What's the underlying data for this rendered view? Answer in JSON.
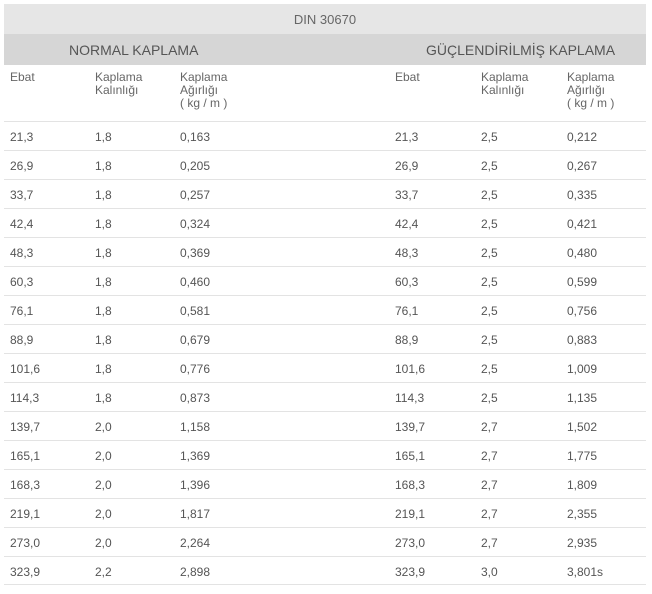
{
  "table": {
    "title": "DIN 30670",
    "sections": {
      "left": "NORMAL KAPLAMA",
      "right": "GÜÇLENDİRİLMİŞ KAPLAMA"
    },
    "headers": [
      "Ebat",
      "Kaplama\nKalınlığı",
      "Kaplama\nAğırlığı\n( kg / m )",
      "Ebat",
      "Kaplama\nKalınlığı",
      "Kaplama\nAğırlığı\n( kg / m )"
    ],
    "rows": [
      [
        "21,3",
        "1,8",
        "0,163",
        "21,3",
        "2,5",
        "0,212"
      ],
      [
        "26,9",
        "1,8",
        "0,205",
        "26,9",
        "2,5",
        "0,267"
      ],
      [
        "33,7",
        "1,8",
        "0,257",
        "33,7",
        "2,5",
        "0,335"
      ],
      [
        "42,4",
        "1,8",
        "0,324",
        "42,4",
        "2,5",
        "0,421"
      ],
      [
        "48,3",
        "1,8",
        "0,369",
        "48,3",
        "2,5",
        "0,480"
      ],
      [
        "60,3",
        "1,8",
        "0,460",
        "60,3",
        "2,5",
        "0,599"
      ],
      [
        "76,1",
        "1,8",
        "0,581",
        "76,1",
        "2,5",
        "0,756"
      ],
      [
        "88,9",
        "1,8",
        "0,679",
        "88,9",
        "2,5",
        "0,883"
      ],
      [
        "101,6",
        "1,8",
        "0,776",
        "101,6",
        "2,5",
        "1,009"
      ],
      [
        "114,3",
        "1,8",
        "0,873",
        "114,3",
        "2,5",
        "1,135"
      ],
      [
        "139,7",
        "2,0",
        "1,158",
        "139,7",
        "2,7",
        "1,502"
      ],
      [
        "165,1",
        "2,0",
        "1,369",
        "165,1",
        "2,7",
        "1,775"
      ],
      [
        "168,3",
        "2,0",
        "1,396",
        "168,3",
        "2,7",
        "1,809"
      ],
      [
        "219,1",
        "2,0",
        "1,817",
        "219,1",
        "2,7",
        "2,355"
      ],
      [
        "273,0",
        "2,0",
        "2,264",
        "273,0",
        "2,7",
        "2,935"
      ],
      [
        "323,9",
        "2,2",
        "2,898",
        "323,9",
        "3,0",
        "3,801s"
      ]
    ]
  }
}
